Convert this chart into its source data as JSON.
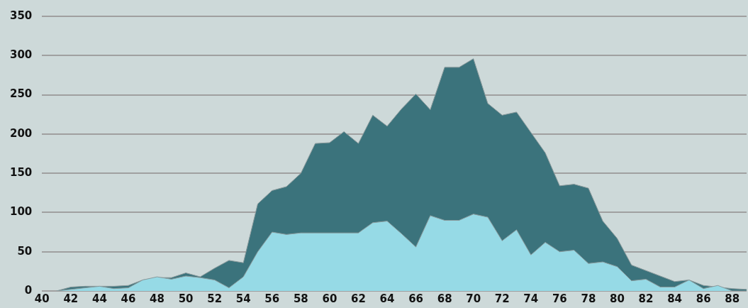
{
  "chart_data": {
    "type": "area",
    "x": [
      41,
      42,
      43,
      44,
      45,
      46,
      47,
      48,
      49,
      50,
      51,
      52,
      53,
      54,
      55,
      56,
      57,
      58,
      59,
      60,
      61,
      62,
      63,
      64,
      65,
      66,
      67,
      68,
      69,
      70,
      71,
      72,
      73,
      74,
      75,
      76,
      77,
      78,
      79,
      80,
      81,
      82,
      83,
      84,
      85,
      86,
      87,
      88,
      89
    ],
    "series": [
      {
        "color": "#3b737c",
        "values": [
          0,
          5,
          6,
          6,
          6,
          7,
          14,
          17,
          17,
          23,
          18,
          29,
          39,
          36,
          111,
          128,
          133,
          150,
          188,
          189,
          203,
          188,
          224,
          210,
          232,
          251,
          231,
          285,
          285,
          296,
          239,
          224,
          228,
          202,
          176,
          134,
          136,
          131,
          89,
          67,
          33,
          26,
          19,
          12,
          14,
          7,
          null,
          3,
          2
        ]
      },
      {
        "color": "#96dae6",
        "values": [
          0,
          2,
          4,
          6,
          3,
          4,
          14,
          18,
          15,
          19,
          17,
          14,
          4,
          18,
          50,
          75,
          72,
          74,
          74,
          74,
          74,
          74,
          87,
          89,
          73,
          56,
          96,
          90,
          90,
          98,
          94,
          64,
          78,
          46,
          62,
          50,
          52,
          35,
          37,
          31,
          13,
          15,
          5,
          5,
          14,
          3,
          7,
          0,
          0
        ]
      }
    ],
    "xlim": [
      40,
      89
    ],
    "xticks": [
      40,
      42,
      44,
      46,
      48,
      50,
      52,
      54,
      56,
      58,
      60,
      62,
      64,
      66,
      68,
      70,
      72,
      74,
      76,
      78,
      80,
      82,
      84,
      86,
      88
    ],
    "ylim": [
      0,
      350
    ],
    "yticks": [
      0,
      50,
      100,
      150,
      200,
      250,
      300,
      350
    ],
    "grid": "y",
    "legend": false
  }
}
